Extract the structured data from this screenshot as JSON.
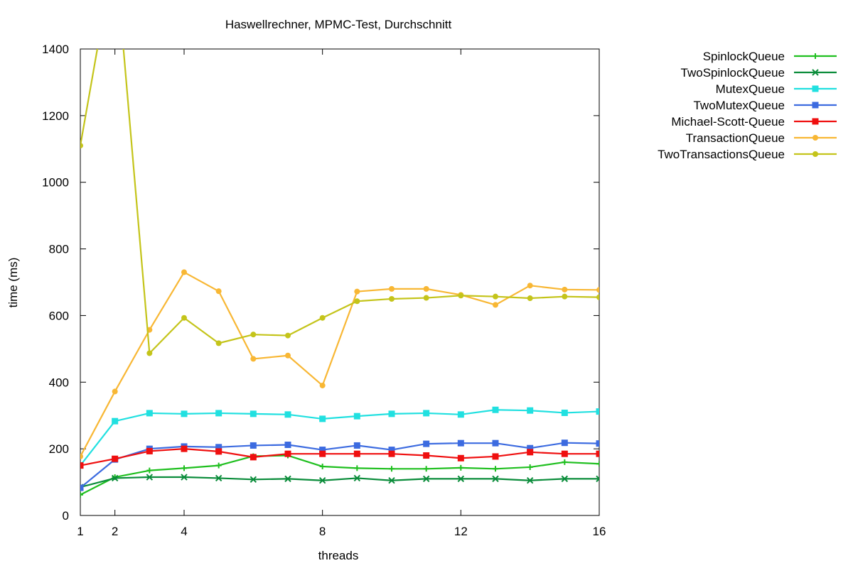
{
  "chart_data": {
    "type": "line",
    "title": "Haswellrechner, MPMC-Test, Durchschnitt",
    "xlabel": "threads",
    "ylabel": "time (ms)",
    "xlim": [
      1,
      16
    ],
    "ylim": [
      0,
      1400
    ],
    "xticks": [
      1,
      2,
      4,
      8,
      12,
      16
    ],
    "yticks": [
      0,
      200,
      400,
      600,
      800,
      1000,
      1200,
      1400
    ],
    "grid": false,
    "legend_position": "outside-right-top",
    "x": [
      1,
      2,
      3,
      4,
      5,
      6,
      7,
      8,
      9,
      10,
      11,
      12,
      13,
      14,
      15,
      16
    ],
    "series": [
      {
        "name": "SpinlockQueue",
        "color": "#1fbf1f",
        "marker": "plus",
        "values": [
          62,
          115,
          135,
          142,
          150,
          178,
          180,
          147,
          142,
          140,
          140,
          143,
          140,
          145,
          160,
          155
        ]
      },
      {
        "name": "TwoSpinlockQueue",
        "color": "#0a8c3a",
        "marker": "cross",
        "values": [
          85,
          112,
          115,
          115,
          112,
          108,
          110,
          105,
          112,
          105,
          110,
          110,
          110,
          105,
          110,
          110
        ]
      },
      {
        "name": "MutexQueue",
        "color": "#21e0e0",
        "marker": "square",
        "values": [
          150,
          283,
          307,
          305,
          307,
          305,
          303,
          290,
          298,
          305,
          307,
          303,
          317,
          315,
          308,
          312
        ]
      },
      {
        "name": "TwoMutexQueue",
        "color": "#3c6be0",
        "marker": "square",
        "values": [
          83,
          168,
          200,
          207,
          205,
          210,
          212,
          197,
          210,
          197,
          215,
          217,
          217,
          202,
          218,
          216
        ]
      },
      {
        "name": "Michael-Scott-Queue",
        "color": "#ef0f0f",
        "marker": "square",
        "values": [
          150,
          170,
          193,
          200,
          192,
          175,
          185,
          185,
          185,
          185,
          180,
          172,
          177,
          190,
          185,
          185
        ]
      },
      {
        "name": "TransactionQueue",
        "color": "#f8b734",
        "marker": "circle",
        "values": [
          177,
          372,
          557,
          730,
          673,
          470,
          480,
          390,
          672,
          680,
          680,
          662,
          632,
          690,
          678,
          677
        ]
      },
      {
        "name": "TwoTransactionsQueue",
        "color": "#c4c41a",
        "marker": "circle",
        "values": [
          1110,
          1700,
          487,
          593,
          517,
          543,
          540,
          593,
          643,
          650,
          653,
          660,
          657,
          652,
          657,
          655
        ]
      }
    ]
  }
}
